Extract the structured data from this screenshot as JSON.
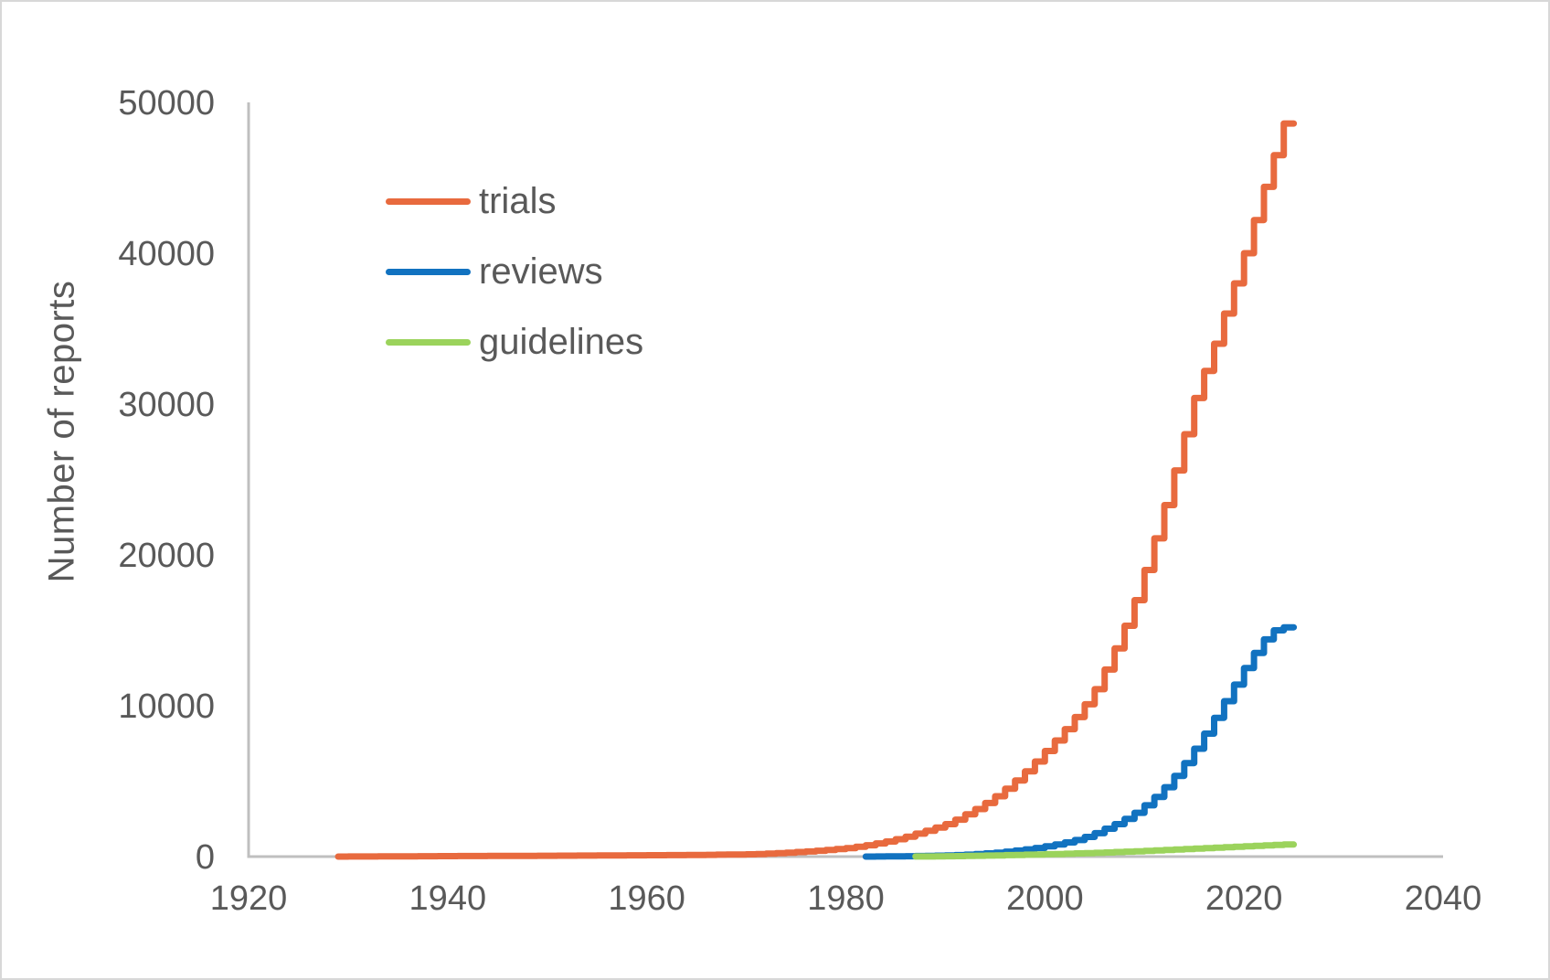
{
  "figure": {
    "background": "#FFFFFF",
    "border_color": "#D8D8D8",
    "axis_color": "#BFBFBF",
    "text_color": "#595959"
  },
  "chart_data": {
    "type": "line",
    "step": true,
    "title": "",
    "xlabel": "",
    "ylabel": "Number of reports",
    "xlim": [
      1920,
      2040
    ],
    "ylim": [
      0,
      50000
    ],
    "x_ticks": [
      1920,
      1940,
      1960,
      1980,
      2000,
      2020,
      2040
    ],
    "y_ticks": [
      0,
      10000,
      20000,
      30000,
      40000,
      50000
    ],
    "grid": false,
    "legend": {
      "position": "inside-upper-left",
      "entries": [
        "trials",
        "reviews",
        "guidelines"
      ]
    },
    "series": [
      {
        "name": "trials",
        "color": "#E86A3E",
        "start_year": 1929,
        "end_year": 2024,
        "values": [
          2,
          4,
          6,
          8,
          10,
          13,
          16,
          19,
          22,
          26,
          30,
          32,
          34,
          37,
          39,
          41,
          43,
          45,
          48,
          51,
          53,
          55,
          58,
          61,
          64,
          67,
          70,
          74,
          78,
          82,
          86,
          90,
          93,
          96,
          100,
          105,
          110,
          117,
          125,
          135,
          142,
          150,
          170,
          195,
          225,
          260,
          300,
          340,
          390,
          445,
          500,
          560,
          650,
          750,
          870,
          1000,
          1150,
          1320,
          1520,
          1710,
          1920,
          2150,
          2450,
          2800,
          3150,
          3550,
          4000,
          4500,
          5050,
          5650,
          6300,
          7000,
          7700,
          8450,
          9250,
          10100,
          11100,
          12400,
          13800,
          15300,
          17000,
          19000,
          21100,
          23300,
          25600,
          28000,
          30400,
          32200,
          34000,
          36000,
          38000,
          40000,
          42200,
          44400,
          46500,
          48600
        ]
      },
      {
        "name": "reviews",
        "color": "#1172C0",
        "start_year": 1982,
        "end_year": 2024,
        "values": [
          2,
          5,
          10,
          16,
          24,
          34,
          46,
          60,
          78,
          100,
          130,
          165,
          210,
          260,
          330,
          400,
          480,
          570,
          680,
          800,
          940,
          1100,
          1300,
          1550,
          1850,
          2150,
          2500,
          2900,
          3400,
          3950,
          4600,
          5350,
          6200,
          7150,
          8150,
          9200,
          10300,
          11400,
          12500,
          13500,
          14400,
          15000,
          15200
        ]
      },
      {
        "name": "guidelines",
        "color": "#9BD35C",
        "start_year": 1987,
        "end_year": 2024,
        "values": [
          4,
          8,
          14,
          22,
          30,
          40,
          52,
          65,
          80,
          95,
          110,
          125,
          140,
          155,
          170,
          190,
          210,
          230,
          250,
          275,
          300,
          325,
          350,
          380,
          410,
          440,
          470,
          500,
          530,
          560,
          590,
          620,
          650,
          680,
          710,
          740,
          770,
          800
        ]
      }
    ]
  }
}
